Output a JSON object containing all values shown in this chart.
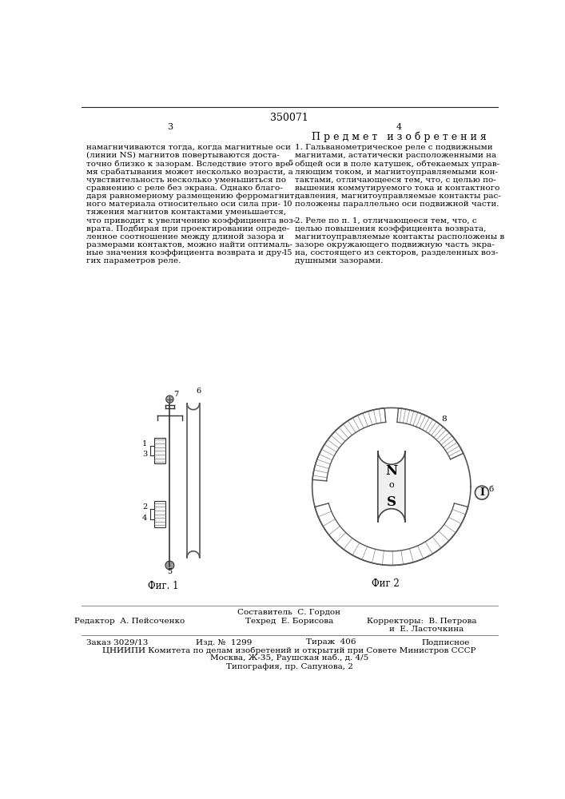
{
  "page_number_center": "350071",
  "col_left_num": "3",
  "col_right_num": "4",
  "right_header": "П р е д м е т   и з о б р е т е н и я",
  "left_text": [
    "намагничиваются тогда, когда магнитные оси",
    "(линии NS) магнитов повертываются доста-",
    "точно близко к зазорам. Вследствие этого вре-",
    "мя срабатывания может несколько возрасти, а",
    "чувствительность несколько уменьшиться по",
    "сравнению с реле без экрана. Однако благо-",
    "даря равномерному размещению ферромагнит-",
    "ного материала относительно оси сила при-",
    "тяжения магнитов контактами уменьшается,",
    "что приводит к увеличению коэффициента воз-",
    "врата. Подбирая при проектировании опреде-",
    "ленное соотношение между длиной зазора и",
    "размерами контактов, можно найти оптималь-",
    "ные значения коэффициента возврата и дру-",
    "гих параметров реле."
  ],
  "right_text": [
    "1. Гальванометрическое реле с подвижными",
    "магнитами, астатически расположенными на",
    "общей оси в поле катушек, обтекаемых управ-",
    "ляющим током, и магнитоуправляемыми кон-",
    "тактами, отличающееся тем, что, с целью по-",
    "вышения коммутируемого тока и контактного",
    "давления, магнитоуправляемые контакты рас-",
    "положены параллельно оси подвижной части.",
    "",
    "2. Реле по п. 1, отличающееся тем, что, с",
    "целью повышения коэффициента возврата,",
    "магнитоуправляемые контакты расположены в",
    "зазоре окружающего подвижную часть экра-",
    "на, состоящего из секторов, разделенных воз-",
    "душными зазорами."
  ],
  "line_numbers": [
    [
      5,
      2
    ],
    [
      10,
      7
    ],
    [
      15,
      13
    ]
  ],
  "fig1_caption": "Фиг. 1",
  "fig2_caption": "Фиг 2",
  "bottom_line1": "Составитель  С. Гордон",
  "bottom_editor": "Редактор  А. Пейсоченко",
  "bottom_tech": "Техред  Е. Борисова",
  "bottom_correct": "Корректоры:  В. Петрова",
  "bottom_correct2": "и  Е. Ласточкина",
  "bottom_order": "Заказ 3029/13",
  "bottom_izd": "Изд. №  1299",
  "bottom_tirazh": "Тираж  406",
  "bottom_podpis": "Подписное",
  "bottom_org": "ЦНИИПИ Комитета по делам изобретений и открытий при Совете Министров СССР",
  "bottom_addr": "Москва, Ж-35, Раушская наб., д. 4/5",
  "bottom_tip": "Типография, пр. Сапунова, 2",
  "bg_color": "#ffffff",
  "text_color": "#000000"
}
